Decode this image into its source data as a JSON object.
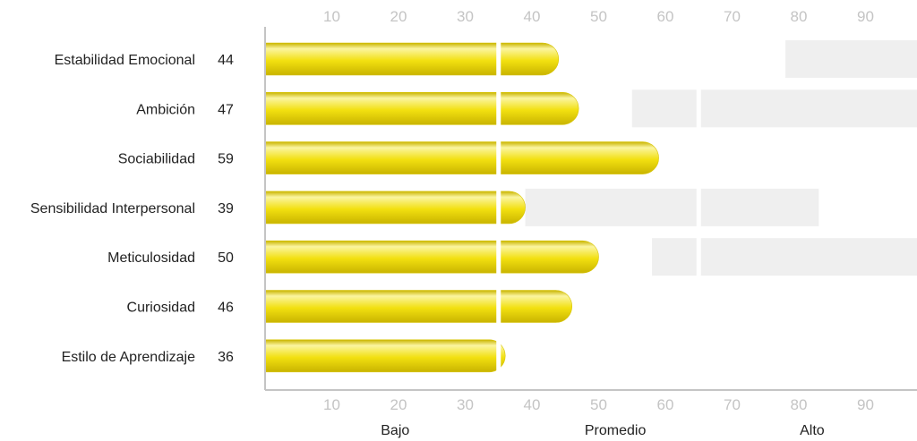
{
  "chart_data": {
    "type": "bar",
    "orientation": "horizontal",
    "categories": [
      "Estabilidad Emocional",
      "Ambición",
      "Sociabilidad",
      "Sensibilidad Interpersonal",
      "Meticulosidad",
      "Curiosidad",
      "Estilo de Aprendizaje"
    ],
    "values": [
      44,
      47,
      59,
      39,
      50,
      46,
      36
    ],
    "value_labels": [
      "44",
      "47",
      "59",
      "39",
      "50",
      "46",
      "36"
    ],
    "xlim": [
      0,
      98
    ],
    "xticks": [
      10,
      20,
      30,
      40,
      50,
      60,
      70,
      80,
      90
    ],
    "xtick_labels": [
      "10",
      "20",
      "30",
      "40",
      "50",
      "60",
      "70",
      "80",
      "90"
    ],
    "band_boundaries": [
      35,
      65
    ],
    "bands": [
      "Bajo",
      "Promedio",
      "Alto"
    ],
    "reference_ranges": [
      {
        "category": "Estabilidad Emocional",
        "from": 78,
        "to": 98
      },
      {
        "category": "Ambición",
        "from": 55,
        "to": 98
      },
      {
        "category": "Sociabilidad",
        "from": null,
        "to": null
      },
      {
        "category": "Sensibilidad Interpersonal",
        "from": 39,
        "to": 83
      },
      {
        "category": "Meticulosidad",
        "from": 58,
        "to": 98
      },
      {
        "category": "Curiosidad",
        "from": null,
        "to": null
      },
      {
        "category": "Estilo de Aprendizaje",
        "from": null,
        "to": null
      }
    ],
    "colors": {
      "bar": "#f2e010",
      "bar_highlight": "#fbf5a0",
      "bar_shadow": "#c9b400",
      "range": "#efefef",
      "axis": "#c4c4c4",
      "tick_text": "#c4c4c4",
      "text": "#222222"
    }
  }
}
